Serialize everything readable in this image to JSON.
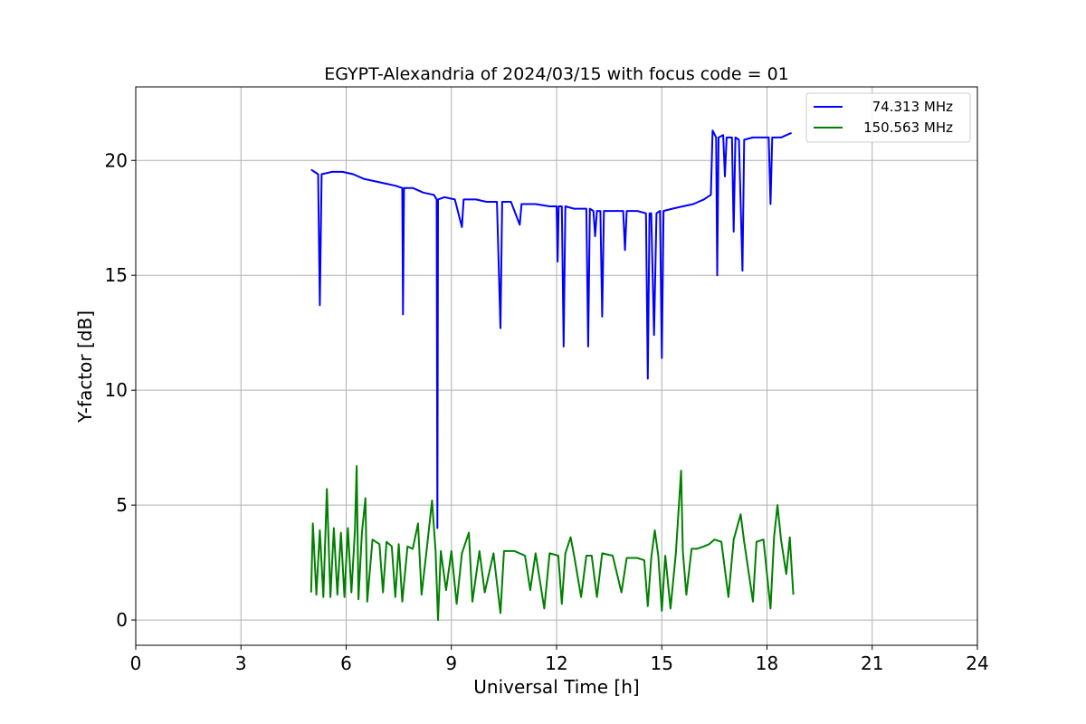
{
  "chart_data": {
    "type": "line",
    "title": "EGYPT-Alexandria of 2024/03/15 with focus code = 01",
    "xlabel": "Universal Time [h]",
    "ylabel": "Y-factor [dB]",
    "xlim": [
      0,
      24
    ],
    "ylim": [
      -1.1,
      23.2
    ],
    "xticks": [
      0,
      3,
      6,
      9,
      12,
      15,
      18,
      21,
      24
    ],
    "yticks": [
      0,
      5,
      10,
      15,
      20
    ],
    "grid": true,
    "legend_position": "top-right",
    "series": [
      {
        "name": "74.313 MHz",
        "color": "#0000ff",
        "points": [
          [
            5.0,
            19.6
          ],
          [
            5.2,
            19.4
          ],
          [
            5.25,
            13.7
          ],
          [
            5.3,
            19.4
          ],
          [
            5.6,
            19.5
          ],
          [
            5.9,
            19.5
          ],
          [
            6.2,
            19.4
          ],
          [
            6.5,
            19.2
          ],
          [
            6.8,
            19.1
          ],
          [
            7.1,
            19.0
          ],
          [
            7.4,
            18.9
          ],
          [
            7.6,
            18.8
          ],
          [
            7.62,
            13.3
          ],
          [
            7.65,
            18.8
          ],
          [
            7.9,
            18.8
          ],
          [
            8.2,
            18.6
          ],
          [
            8.5,
            18.5
          ],
          [
            8.58,
            18.3
          ],
          [
            8.6,
            4.0
          ],
          [
            8.62,
            18.3
          ],
          [
            8.8,
            18.4
          ],
          [
            9.1,
            18.3
          ],
          [
            9.3,
            17.1
          ],
          [
            9.35,
            18.3
          ],
          [
            9.7,
            18.3
          ],
          [
            10.0,
            18.2
          ],
          [
            10.3,
            18.2
          ],
          [
            10.4,
            12.7
          ],
          [
            10.45,
            18.2
          ],
          [
            10.7,
            18.2
          ],
          [
            10.95,
            17.2
          ],
          [
            11.0,
            18.1
          ],
          [
            11.4,
            18.1
          ],
          [
            11.8,
            18.0
          ],
          [
            12.0,
            18.0
          ],
          [
            12.03,
            15.6
          ],
          [
            12.06,
            18.0
          ],
          [
            12.15,
            18.0
          ],
          [
            12.2,
            11.9
          ],
          [
            12.25,
            18.0
          ],
          [
            12.5,
            17.9
          ],
          [
            12.85,
            17.9
          ],
          [
            12.9,
            11.9
          ],
          [
            12.95,
            17.9
          ],
          [
            13.05,
            17.8
          ],
          [
            13.1,
            16.7
          ],
          [
            13.15,
            17.8
          ],
          [
            13.25,
            17.8
          ],
          [
            13.3,
            13.2
          ],
          [
            13.35,
            17.8
          ],
          [
            13.6,
            17.8
          ],
          [
            13.9,
            17.8
          ],
          [
            13.95,
            16.1
          ],
          [
            14.0,
            17.8
          ],
          [
            14.3,
            17.8
          ],
          [
            14.55,
            17.7
          ],
          [
            14.6,
            10.5
          ],
          [
            14.65,
            17.7
          ],
          [
            14.7,
            17.7
          ],
          [
            14.78,
            12.4
          ],
          [
            14.85,
            17.7
          ],
          [
            14.95,
            17.8
          ],
          [
            15.0,
            11.4
          ],
          [
            15.05,
            17.8
          ],
          [
            15.3,
            17.9
          ],
          [
            15.6,
            18.0
          ],
          [
            15.9,
            18.1
          ],
          [
            16.2,
            18.3
          ],
          [
            16.4,
            18.5
          ],
          [
            16.45,
            21.3
          ],
          [
            16.55,
            21.0
          ],
          [
            16.58,
            15.0
          ],
          [
            16.62,
            21.0
          ],
          [
            16.75,
            21.1
          ],
          [
            16.8,
            19.3
          ],
          [
            16.85,
            21.0
          ],
          [
            17.0,
            21.0
          ],
          [
            17.05,
            16.9
          ],
          [
            17.1,
            21.0
          ],
          [
            17.2,
            20.9
          ],
          [
            17.3,
            15.2
          ],
          [
            17.35,
            20.9
          ],
          [
            17.6,
            21.0
          ],
          [
            17.9,
            21.0
          ],
          [
            18.05,
            21.0
          ],
          [
            18.1,
            18.1
          ],
          [
            18.15,
            21.0
          ],
          [
            18.4,
            21.0
          ],
          [
            18.7,
            21.2
          ]
        ]
      },
      {
        "name": "150.563 MHz",
        "color": "#008000",
        "points": [
          [
            5.0,
            1.2
          ],
          [
            5.05,
            4.2
          ],
          [
            5.15,
            1.1
          ],
          [
            5.25,
            3.9
          ],
          [
            5.35,
            1.0
          ],
          [
            5.45,
            5.7
          ],
          [
            5.55,
            1.0
          ],
          [
            5.65,
            4.0
          ],
          [
            5.75,
            1.1
          ],
          [
            5.85,
            3.8
          ],
          [
            5.95,
            1.0
          ],
          [
            6.05,
            4.0
          ],
          [
            6.15,
            1.2
          ],
          [
            6.25,
            3.9
          ],
          [
            6.3,
            6.7
          ],
          [
            6.35,
            0.9
          ],
          [
            6.45,
            3.8
          ],
          [
            6.55,
            5.3
          ],
          [
            6.6,
            0.8
          ],
          [
            6.75,
            3.5
          ],
          [
            6.95,
            3.3
          ],
          [
            7.05,
            1.2
          ],
          [
            7.15,
            3.4
          ],
          [
            7.3,
            3.2
          ],
          [
            7.4,
            1.0
          ],
          [
            7.5,
            3.3
          ],
          [
            7.6,
            0.8
          ],
          [
            7.75,
            3.2
          ],
          [
            7.9,
            3.1
          ],
          [
            8.05,
            4.2
          ],
          [
            8.15,
            1.1
          ],
          [
            8.3,
            3.1
          ],
          [
            8.45,
            5.2
          ],
          [
            8.55,
            3.0
          ],
          [
            8.62,
            0.0
          ],
          [
            8.7,
            3.0
          ],
          [
            8.85,
            1.3
          ],
          [
            9.0,
            3.0
          ],
          [
            9.15,
            0.7
          ],
          [
            9.3,
            2.9
          ],
          [
            9.5,
            3.8
          ],
          [
            9.6,
            0.8
          ],
          [
            9.8,
            3.0
          ],
          [
            9.95,
            1.2
          ],
          [
            10.2,
            2.9
          ],
          [
            10.4,
            0.3
          ],
          [
            10.5,
            3.0
          ],
          [
            10.8,
            3.0
          ],
          [
            11.1,
            2.8
          ],
          [
            11.25,
            1.3
          ],
          [
            11.4,
            2.9
          ],
          [
            11.65,
            0.5
          ],
          [
            11.8,
            2.9
          ],
          [
            12.05,
            2.8
          ],
          [
            12.15,
            0.7
          ],
          [
            12.25,
            2.9
          ],
          [
            12.4,
            3.6
          ],
          [
            12.5,
            2.8
          ],
          [
            12.7,
            1.0
          ],
          [
            12.85,
            2.8
          ],
          [
            13.0,
            2.8
          ],
          [
            13.15,
            1.0
          ],
          [
            13.3,
            2.9
          ],
          [
            13.6,
            2.8
          ],
          [
            13.85,
            1.2
          ],
          [
            14.0,
            2.7
          ],
          [
            14.3,
            2.7
          ],
          [
            14.5,
            2.6
          ],
          [
            14.6,
            0.6
          ],
          [
            14.7,
            2.7
          ],
          [
            14.8,
            3.9
          ],
          [
            14.9,
            2.8
          ],
          [
            15.0,
            0.4
          ],
          [
            15.1,
            2.8
          ],
          [
            15.25,
            0.5
          ],
          [
            15.4,
            2.9
          ],
          [
            15.55,
            6.5
          ],
          [
            15.6,
            3.0
          ],
          [
            15.7,
            1.1
          ],
          [
            15.85,
            3.1
          ],
          [
            16.0,
            3.1
          ],
          [
            16.2,
            3.2
          ],
          [
            16.35,
            3.3
          ],
          [
            16.5,
            3.5
          ],
          [
            16.7,
            3.4
          ],
          [
            16.9,
            1.0
          ],
          [
            17.05,
            3.5
          ],
          [
            17.25,
            4.6
          ],
          [
            17.35,
            3.4
          ],
          [
            17.6,
            0.8
          ],
          [
            17.7,
            3.4
          ],
          [
            17.9,
            3.5
          ],
          [
            18.1,
            0.5
          ],
          [
            18.2,
            3.6
          ],
          [
            18.3,
            5.0
          ],
          [
            18.4,
            3.5
          ],
          [
            18.55,
            2.0
          ],
          [
            18.65,
            3.6
          ],
          [
            18.75,
            1.1
          ]
        ]
      }
    ]
  }
}
